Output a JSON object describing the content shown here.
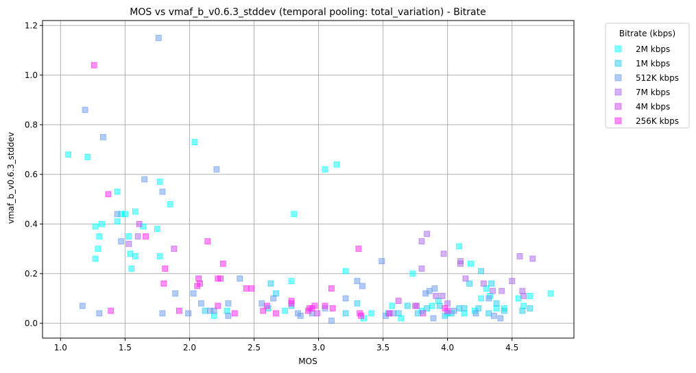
{
  "chart_data": {
    "type": "scatter",
    "title": "MOS vs vmaf_b_v0.6.3_stddev (temporal pooling: total_variation) - Bitrate",
    "xlabel": "MOS",
    "ylabel": "vmaf_b_v0.6.3_stddev",
    "xlim": [
      0.86,
      4.98
    ],
    "ylim": [
      -0.06,
      1.22
    ],
    "xticks": [
      1.0,
      1.5,
      2.0,
      2.5,
      3.0,
      3.5,
      4.0,
      4.5
    ],
    "xtick_labels": [
      "1.0",
      "1.5",
      "2.0",
      "2.5",
      "3.0",
      "3.5",
      "4.0",
      "4.5"
    ],
    "yticks": [
      0.0,
      0.2,
      0.4,
      0.6,
      0.8,
      1.0,
      1.2
    ],
    "ytick_labels": [
      "0.0",
      "0.2",
      "0.4",
      "0.6",
      "0.8",
      "1.0",
      "1.2"
    ],
    "grid": true,
    "legend": {
      "title": "Bitrate (kbps)",
      "placement": "outside-right"
    },
    "marker": "square",
    "series": [
      {
        "name": "2M kbps",
        "color": "#00ffff",
        "points": [
          [
            1.06,
            0.68
          ],
          [
            1.21,
            0.67
          ],
          [
            1.27,
            0.39
          ],
          [
            1.27,
            0.26
          ],
          [
            1.29,
            0.3
          ],
          [
            1.3,
            0.35
          ],
          [
            1.32,
            0.4
          ],
          [
            1.44,
            0.53
          ],
          [
            1.44,
            0.41
          ],
          [
            1.47,
            0.44
          ],
          [
            1.5,
            0.44
          ],
          [
            1.53,
            0.35
          ],
          [
            1.54,
            0.28
          ],
          [
            1.55,
            0.22
          ],
          [
            1.58,
            0.45
          ],
          [
            1.58,
            0.27
          ],
          [
            1.64,
            0.39
          ],
          [
            1.75,
            0.38
          ],
          [
            1.77,
            0.57
          ],
          [
            1.77,
            0.27
          ],
          [
            1.85,
            0.48
          ],
          [
            2.04,
            0.73
          ],
          [
            2.19,
            0.03
          ],
          [
            2.29,
            0.05
          ],
          [
            2.74,
            0.05
          ],
          [
            2.79,
            0.17
          ],
          [
            2.81,
            0.44
          ],
          [
            3.05,
            0.62
          ],
          [
            3.14,
            0.64
          ],
          [
            3.21,
            0.21
          ],
          [
            3.35,
            0.02
          ],
          [
            3.41,
            0.04
          ],
          [
            3.57,
            0.07
          ],
          [
            3.64,
            0.02
          ],
          [
            3.73,
            0.2
          ],
          [
            3.8,
            0.05
          ],
          [
            3.88,
            0.07
          ],
          [
            3.93,
            0.09
          ],
          [
            4.0,
            0.04
          ],
          [
            4.09,
            0.31
          ],
          [
            4.13,
            0.04
          ],
          [
            4.18,
            0.24
          ],
          [
            4.21,
            0.05
          ],
          [
            4.26,
            0.1
          ],
          [
            4.3,
            0.14
          ],
          [
            4.33,
            0.11
          ],
          [
            4.38,
            0.06
          ],
          [
            4.44,
            0.06
          ],
          [
            4.55,
            0.1
          ],
          [
            4.59,
            0.07
          ],
          [
            4.64,
            0.11
          ],
          [
            4.8,
            0.12
          ]
        ]
      },
      {
        "name": "1M kbps",
        "color": "#22ccee",
        "points": [
          [
            2.12,
            0.05
          ],
          [
            2.61,
            0.06
          ],
          [
            2.63,
            0.16
          ],
          [
            2.67,
            0.12
          ],
          [
            2.79,
            0.07
          ],
          [
            3.21,
            0.04
          ],
          [
            3.3,
            0.08
          ],
          [
            3.54,
            0.04
          ],
          [
            3.62,
            0.04
          ],
          [
            3.69,
            0.07
          ],
          [
            3.77,
            0.04
          ],
          [
            3.84,
            0.06
          ],
          [
            3.94,
            0.07
          ],
          [
            3.98,
            0.03
          ],
          [
            4.03,
            0.04
          ],
          [
            4.09,
            0.06
          ],
          [
            4.13,
            0.06
          ],
          [
            4.17,
            0.16
          ],
          [
            4.24,
            0.06
          ],
          [
            4.26,
            0.21
          ],
          [
            4.32,
            0.04
          ],
          [
            4.34,
            0.16
          ],
          [
            4.38,
            0.08
          ],
          [
            4.44,
            0.05
          ],
          [
            4.58,
            0.05
          ],
          [
            4.64,
            0.06
          ]
        ]
      },
      {
        "name": "512K kbps",
        "color": "#6699ee",
        "points": [
          [
            1.17,
            0.07
          ],
          [
            1.19,
            0.86
          ],
          [
            1.3,
            0.04
          ],
          [
            1.33,
            0.75
          ],
          [
            1.44,
            0.44
          ],
          [
            1.47,
            0.33
          ],
          [
            1.65,
            0.58
          ],
          [
            1.76,
            1.15
          ],
          [
            1.79,
            0.53
          ],
          [
            1.79,
            0.04
          ],
          [
            1.89,
            0.12
          ],
          [
            1.99,
            0.04
          ],
          [
            2.03,
            0.12
          ],
          [
            2.09,
            0.08
          ],
          [
            2.16,
            0.05
          ],
          [
            2.19,
            0.05
          ],
          [
            2.21,
            0.62
          ],
          [
            2.3,
            0.08
          ],
          [
            2.3,
            0.03
          ],
          [
            2.39,
            0.18
          ],
          [
            2.56,
            0.08
          ],
          [
            2.65,
            0.1
          ],
          [
            2.84,
            0.04
          ],
          [
            2.86,
            0.03
          ],
          [
            2.95,
            0.04
          ],
          [
            3.05,
            0.06
          ],
          [
            3.1,
            0.01
          ],
          [
            3.21,
            0.1
          ],
          [
            3.3,
            0.17
          ],
          [
            3.34,
            0.15
          ],
          [
            3.49,
            0.25
          ],
          [
            3.52,
            0.03
          ],
          [
            3.58,
            0.04
          ],
          [
            3.83,
            0.12
          ],
          [
            3.86,
            0.13
          ],
          [
            3.89,
            0.02
          ],
          [
            3.9,
            0.14
          ],
          [
            4.05,
            0.05
          ],
          [
            4.22,
            0.04
          ],
          [
            4.32,
            0.1
          ],
          [
            4.36,
            0.03
          ],
          [
            4.41,
            0.02
          ]
        ]
      },
      {
        "name": "7M kbps",
        "color": "#aa66ee",
        "points": [
          [
            1.53,
            0.32
          ],
          [
            1.6,
            0.35
          ],
          [
            3.75,
            0.07
          ],
          [
            3.8,
            0.33
          ],
          [
            3.8,
            0.22
          ],
          [
            3.84,
            0.36
          ],
          [
            3.91,
            0.11
          ],
          [
            3.96,
            0.11
          ],
          [
            3.97,
            0.28
          ],
          [
            4.0,
            0.08
          ],
          [
            4.1,
            0.24
          ],
          [
            4.1,
            0.25
          ],
          [
            4.14,
            0.18
          ],
          [
            4.28,
            0.16
          ],
          [
            4.35,
            0.13
          ],
          [
            4.42,
            0.13
          ],
          [
            4.5,
            0.17
          ],
          [
            4.56,
            0.27
          ],
          [
            4.58,
            0.13
          ],
          [
            4.59,
            0.11
          ],
          [
            4.66,
            0.26
          ]
        ]
      },
      {
        "name": "4M kbps",
        "color": "#cc44ee",
        "points": [
          [
            1.61,
            0.4
          ],
          [
            1.88,
            0.3
          ],
          [
            2.99,
            0.04
          ],
          [
            3.62,
            0.09
          ],
          [
            3.76,
            0.07
          ],
          [
            3.81,
            0.04
          ]
        ]
      },
      {
        "name": "256K kbps",
        "color": "#ff22ee",
        "points": [
          [
            1.26,
            1.04
          ],
          [
            1.37,
            0.52
          ],
          [
            1.39,
            0.05
          ],
          [
            1.66,
            0.35
          ],
          [
            1.8,
            0.16
          ],
          [
            1.81,
            0.22
          ],
          [
            1.92,
            0.05
          ],
          [
            2.06,
            0.15
          ],
          [
            2.07,
            0.18
          ],
          [
            2.08,
            0.16
          ],
          [
            2.14,
            0.33
          ],
          [
            2.22,
            0.07
          ],
          [
            2.22,
            0.18
          ],
          [
            2.24,
            0.18
          ],
          [
            2.26,
            0.24
          ],
          [
            2.35,
            0.04
          ],
          [
            2.44,
            0.14
          ],
          [
            2.48,
            0.14
          ],
          [
            2.57,
            0.05
          ],
          [
            2.6,
            0.07
          ],
          [
            2.67,
            0.04
          ],
          [
            2.79,
            0.09
          ],
          [
            2.79,
            0.08
          ],
          [
            2.92,
            0.05
          ],
          [
            2.93,
            0.06
          ],
          [
            2.95,
            0.06
          ],
          [
            2.97,
            0.07
          ],
          [
            3.05,
            0.07
          ],
          [
            3.1,
            0.14
          ],
          [
            3.11,
            0.06
          ],
          [
            3.31,
            0.3
          ],
          [
            3.32,
            0.04
          ],
          [
            3.33,
            0.03
          ],
          [
            3.55,
            0.04
          ],
          [
            3.98,
            0.06
          ],
          [
            4.0,
            0.05
          ]
        ]
      }
    ]
  }
}
